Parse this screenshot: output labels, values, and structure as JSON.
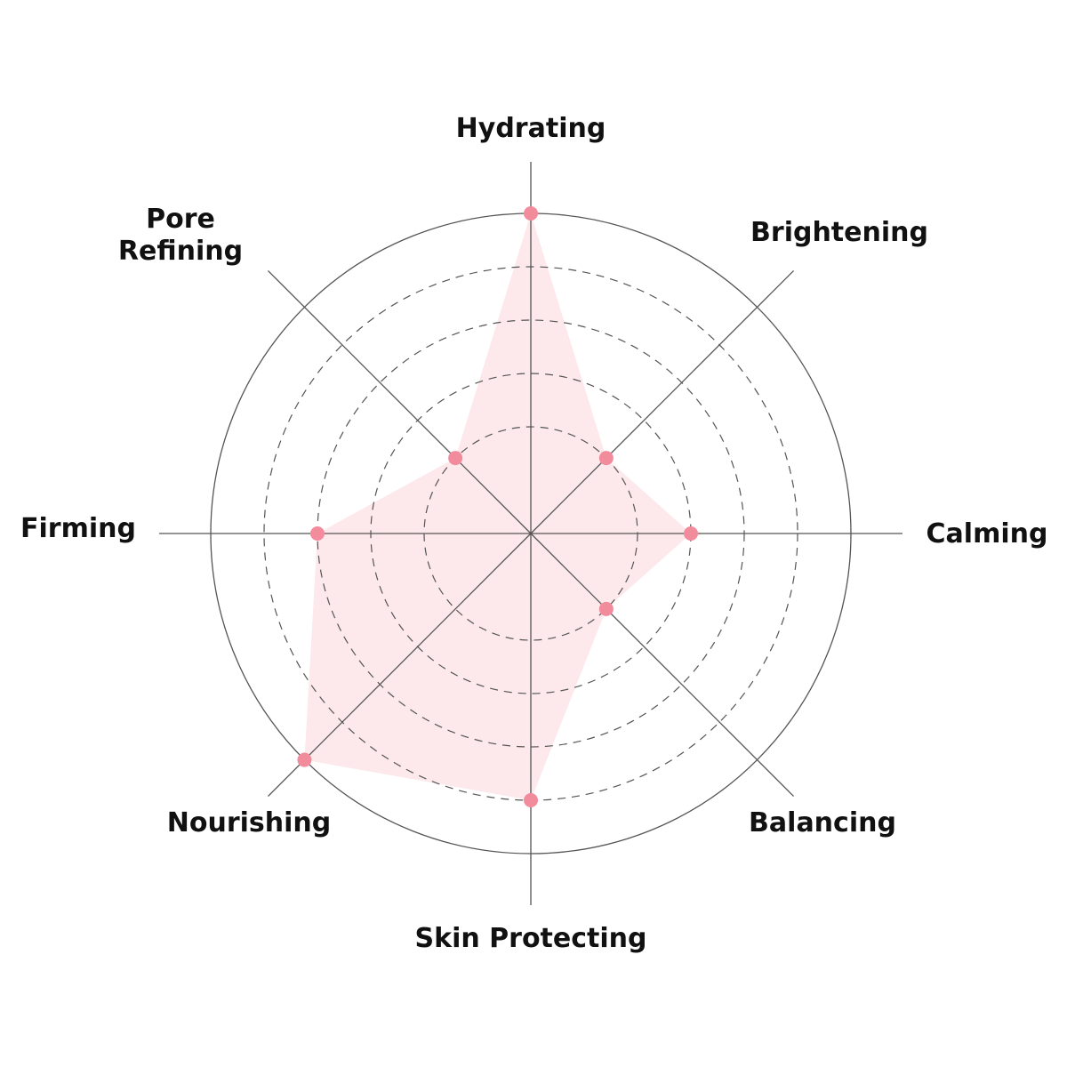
{
  "chart_data": {
    "type": "radar",
    "categories": [
      "Hydrating",
      "Brightening",
      "Calming",
      "Balancing",
      "Skin Protecting",
      "Nourishing",
      "Firming",
      "Pore Refining"
    ],
    "label_lines": [
      [
        "Hydrating"
      ],
      [
        "Brightening"
      ],
      [
        "Calming"
      ],
      [
        "Balancing"
      ],
      [
        "Skin Protecting"
      ],
      [
        "Nourishing"
      ],
      [
        "Firming"
      ],
      [
        "Pore",
        "Refining"
      ]
    ],
    "values": [
      6,
      2,
      3,
      2,
      5,
      6,
      4,
      2
    ],
    "rlim": [
      0,
      6
    ],
    "grid_levels": [
      2,
      3,
      4,
      5
    ],
    "title": "",
    "colors": {
      "fill": "#fde8eb",
      "point": "#f28b9c",
      "grid": "#555555",
      "label": "#111111"
    }
  }
}
